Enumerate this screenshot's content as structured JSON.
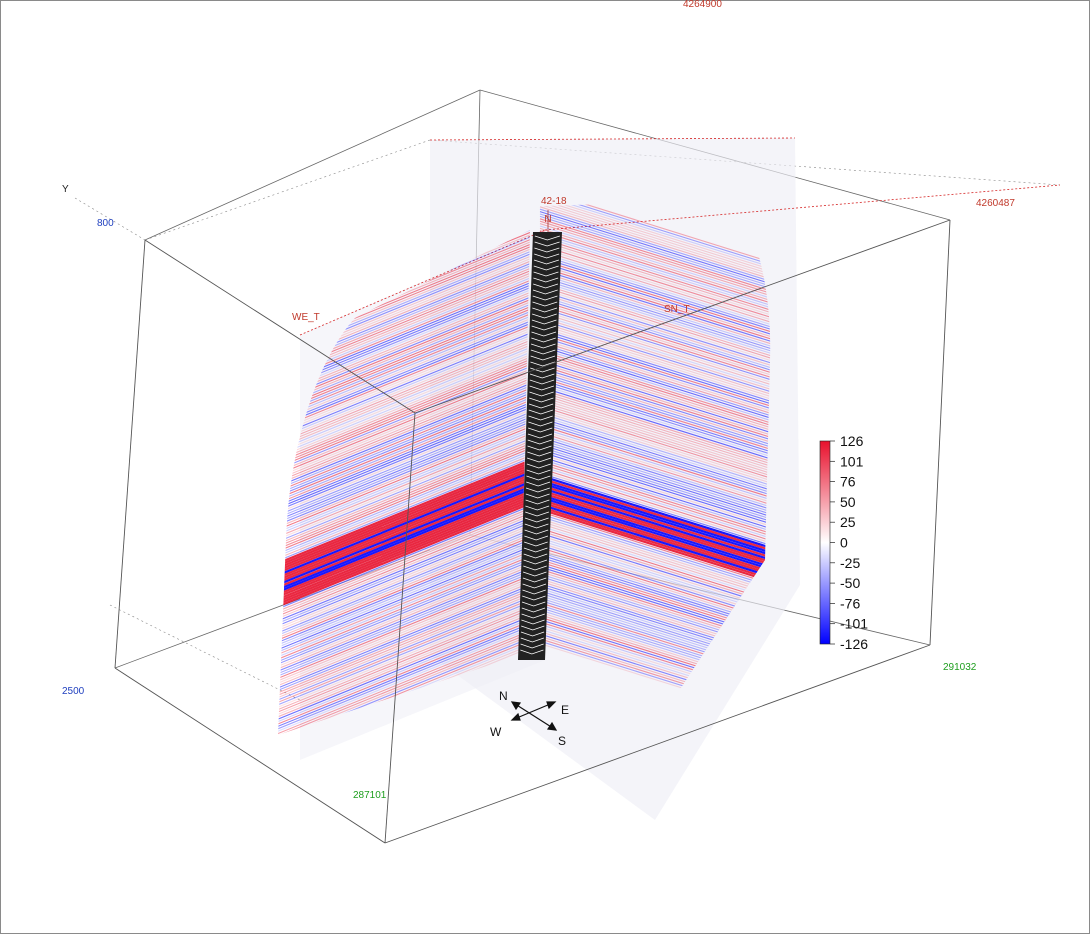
{
  "axes": {
    "y_axis_label": "Y",
    "depth_top": "800",
    "depth_bottom": "2500",
    "northing_top_clipped": "4264900",
    "northing_right": "4260487",
    "easting_right": "291032",
    "easting_bottom_clipped": "287101"
  },
  "sections": {
    "west_east_label": "WE_T",
    "south_north_label": "SN_T",
    "well_label": "42-18"
  },
  "colorbar": {
    "ticks": [
      "126",
      "101",
      "76",
      "50",
      "25",
      "0",
      "-25",
      "-50",
      "-76",
      "-101",
      "-126"
    ],
    "min": -126,
    "max": 126,
    "colors": {
      "positive": "#e8112d",
      "zero": "#ffffff",
      "negative": "#0000ff"
    }
  },
  "compass": {
    "n": "N",
    "e": "E",
    "w": "W",
    "s": "S"
  },
  "colors": {
    "box_lines": "#555555",
    "section_outline": "#d62828",
    "panel_bg": "#eeeef6"
  }
}
